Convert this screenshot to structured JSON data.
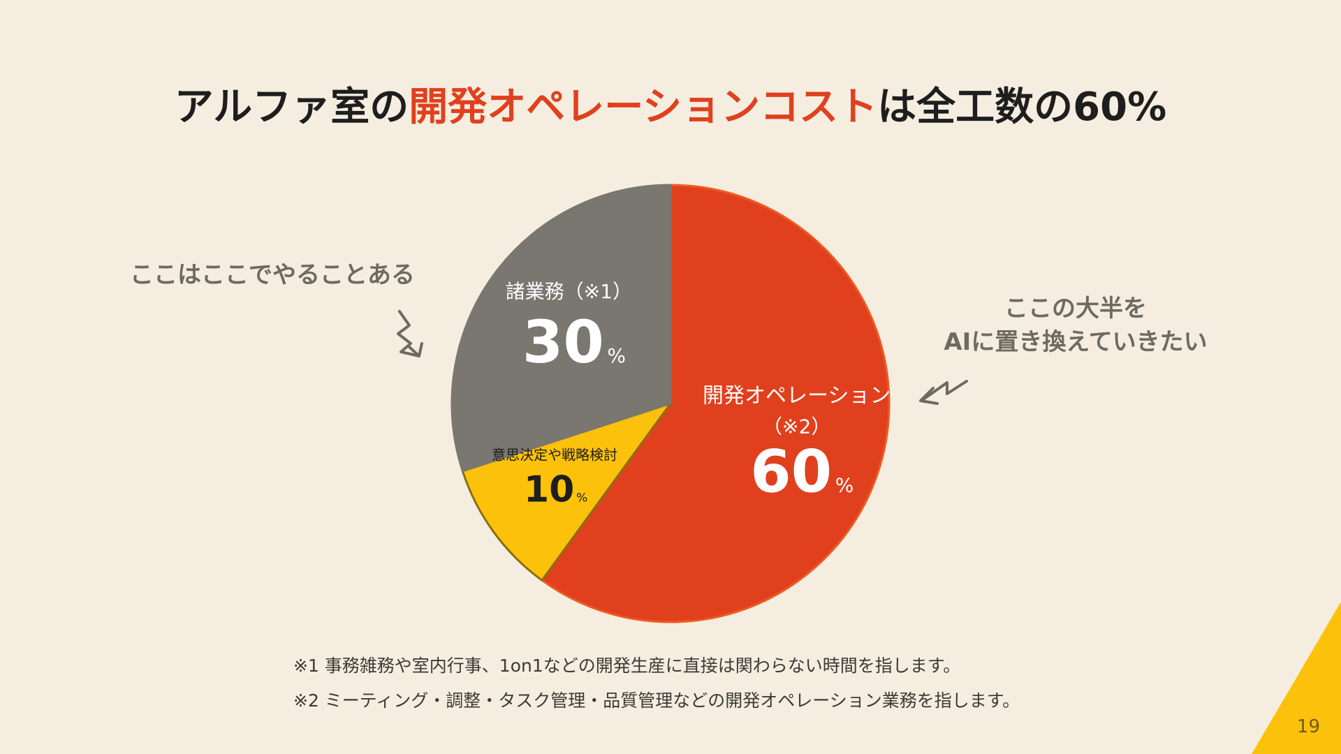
{
  "title": {
    "prefix": "アルファ室の",
    "highlight": "開発オペレーションコスト",
    "suffix": "は全工数の60%"
  },
  "colors": {
    "background": "#f5eee0",
    "accent": "#e0401e",
    "gray": "#7a7670",
    "yellow": "#fcc10a",
    "corner": "#fcc10a"
  },
  "notes": {
    "left": "ここはここでやることある",
    "right_line1": "ここの大半を",
    "right_line2": "AIに置き換えていきたい"
  },
  "chart_data": {
    "type": "pie",
    "slices": [
      {
        "name": "開発オペレーション",
        "note": "（※2）",
        "value": 60,
        "unit": "%",
        "color": "#e0401e"
      },
      {
        "name": "意思決定や戦略検討",
        "note": "",
        "value": 10,
        "unit": "%",
        "color": "#fcc10a"
      },
      {
        "name": "諸業務（※1）",
        "note": "",
        "value": 30,
        "unit": "%",
        "color": "#7a7670"
      }
    ]
  },
  "footnotes": [
    "※1 事務雑務や室内行事、1on1などの開発生産に直接は関わらない時間を指します。",
    "※2 ミーティング・調整・タスク管理・品質管理などの開発オペレーション業務を指します。"
  ],
  "page_number": "19"
}
